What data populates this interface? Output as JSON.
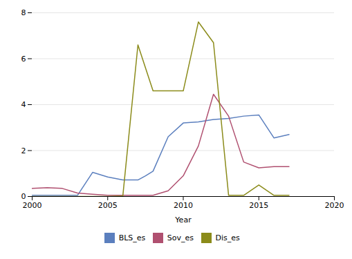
{
  "chart_data": {
    "type": "line",
    "xlabel": "Year",
    "xlim": [
      2000,
      2020
    ],
    "ylim": [
      0,
      8
    ],
    "xticks": [
      2000,
      2005,
      2010,
      2015,
      2020
    ],
    "yticks": [
      0,
      2,
      4,
      6,
      8
    ],
    "grid": true,
    "legend": "bottom",
    "series": [
      {
        "name": "BLS_es",
        "color": "#5b7fbe",
        "x": [
          2000,
          2001,
          2002,
          2003,
          2004,
          2005,
          2006,
          2007,
          2007.5,
          2008,
          2009,
          2010,
          2011,
          2012,
          2013,
          2014,
          2015,
          2016,
          2017
        ],
        "values": [
          0.05,
          0.05,
          0.05,
          0.05,
          1.05,
          0.85,
          0.72,
          0.72,
          0.9,
          1.1,
          2.6,
          3.2,
          3.25,
          3.35,
          3.4,
          3.5,
          3.55,
          2.55,
          2.7
        ]
      },
      {
        "name": "Sov_es",
        "color": "#b05070",
        "x": [
          2000,
          2001,
          2002,
          2003,
          2004,
          2005,
          2006,
          2007,
          2008,
          2009,
          2010,
          2011,
          2012,
          2013,
          2014,
          2015,
          2016,
          2017
        ],
        "values": [
          0.35,
          0.38,
          0.35,
          0.15,
          0.1,
          0.05,
          0.05,
          0.05,
          0.05,
          0.25,
          0.9,
          2.2,
          4.45,
          3.5,
          1.5,
          1.25,
          1.3,
          1.3
        ]
      },
      {
        "name": "Dis_es",
        "color": "#8b8b1a",
        "x": [
          2000,
          2001,
          2002,
          2003,
          2004,
          2005,
          2006,
          2007,
          2008,
          2009,
          2010,
          2011,
          2012,
          2013,
          2014,
          2015,
          2016,
          2017
        ],
        "values": [
          0.0,
          0.0,
          0.0,
          0.0,
          0.0,
          0.0,
          0.02,
          6.6,
          4.6,
          4.6,
          4.6,
          7.6,
          6.7,
          0.05,
          0.05,
          0.5,
          0.05,
          0.05
        ]
      }
    ]
  }
}
